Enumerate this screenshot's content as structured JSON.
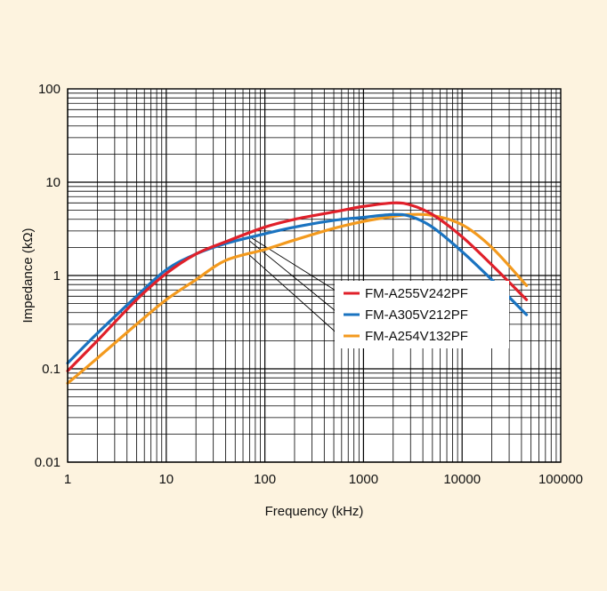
{
  "chart_data": {
    "type": "line",
    "xlabel": "Frequency (kHz)",
    "ylabel": "Impedance (kΩ)",
    "x_scale": "log",
    "y_scale": "log",
    "xlim": [
      1,
      100000
    ],
    "ylim": [
      0.01,
      100
    ],
    "grid": true,
    "legend_position": "center-right",
    "x_ticks": [
      "1",
      "10",
      "100",
      "1000",
      "10000",
      "100000"
    ],
    "y_ticks": [
      "0.01",
      "0.1",
      "1",
      "10",
      "100"
    ],
    "series": [
      {
        "name": "FM-A255V242PF",
        "color": "#e0202a",
        "points": [
          [
            1,
            0.095
          ],
          [
            2,
            0.2
          ],
          [
            5,
            0.55
          ],
          [
            10,
            1.05
          ],
          [
            20,
            1.7
          ],
          [
            40,
            2.3
          ],
          [
            100,
            3.3
          ],
          [
            200,
            4.0
          ],
          [
            500,
            4.8
          ],
          [
            1000,
            5.5
          ],
          [
            2000,
            6.0
          ],
          [
            3000,
            5.7
          ],
          [
            5000,
            4.5
          ],
          [
            10000,
            2.6
          ],
          [
            20000,
            1.3
          ],
          [
            45000,
            0.55
          ]
        ]
      },
      {
        "name": "FM-A305V212PF",
        "color": "#1a73c0",
        "points": [
          [
            1,
            0.115
          ],
          [
            2,
            0.24
          ],
          [
            5,
            0.6
          ],
          [
            10,
            1.15
          ],
          [
            20,
            1.7
          ],
          [
            40,
            2.2
          ],
          [
            100,
            2.8
          ],
          [
            200,
            3.3
          ],
          [
            500,
            3.9
          ],
          [
            1000,
            4.2
          ],
          [
            2000,
            4.5
          ],
          [
            3000,
            4.3
          ],
          [
            5000,
            3.3
          ],
          [
            10000,
            1.8
          ],
          [
            20000,
            0.9
          ],
          [
            45000,
            0.38
          ]
        ]
      },
      {
        "name": "FM-A254V132PF",
        "color": "#f39a1e",
        "points": [
          [
            1,
            0.07
          ],
          [
            2,
            0.13
          ],
          [
            5,
            0.3
          ],
          [
            10,
            0.55
          ],
          [
            20,
            0.9
          ],
          [
            40,
            1.45
          ],
          [
            100,
            1.9
          ],
          [
            200,
            2.4
          ],
          [
            500,
            3.2
          ],
          [
            1000,
            3.8
          ],
          [
            2000,
            4.3
          ],
          [
            3000,
            4.5
          ],
          [
            5000,
            4.4
          ],
          [
            10000,
            3.5
          ],
          [
            20000,
            2.0
          ],
          [
            45000,
            0.78
          ]
        ]
      }
    ],
    "leader_lines": [
      {
        "series": "FM-A255V242PF",
        "x": 70,
        "y": 2.6
      },
      {
        "series": "FM-A305V212PF",
        "x": 70,
        "y": 2.35
      },
      {
        "series": "FM-A254V132PF",
        "x": 70,
        "y": 1.65
      }
    ]
  }
}
